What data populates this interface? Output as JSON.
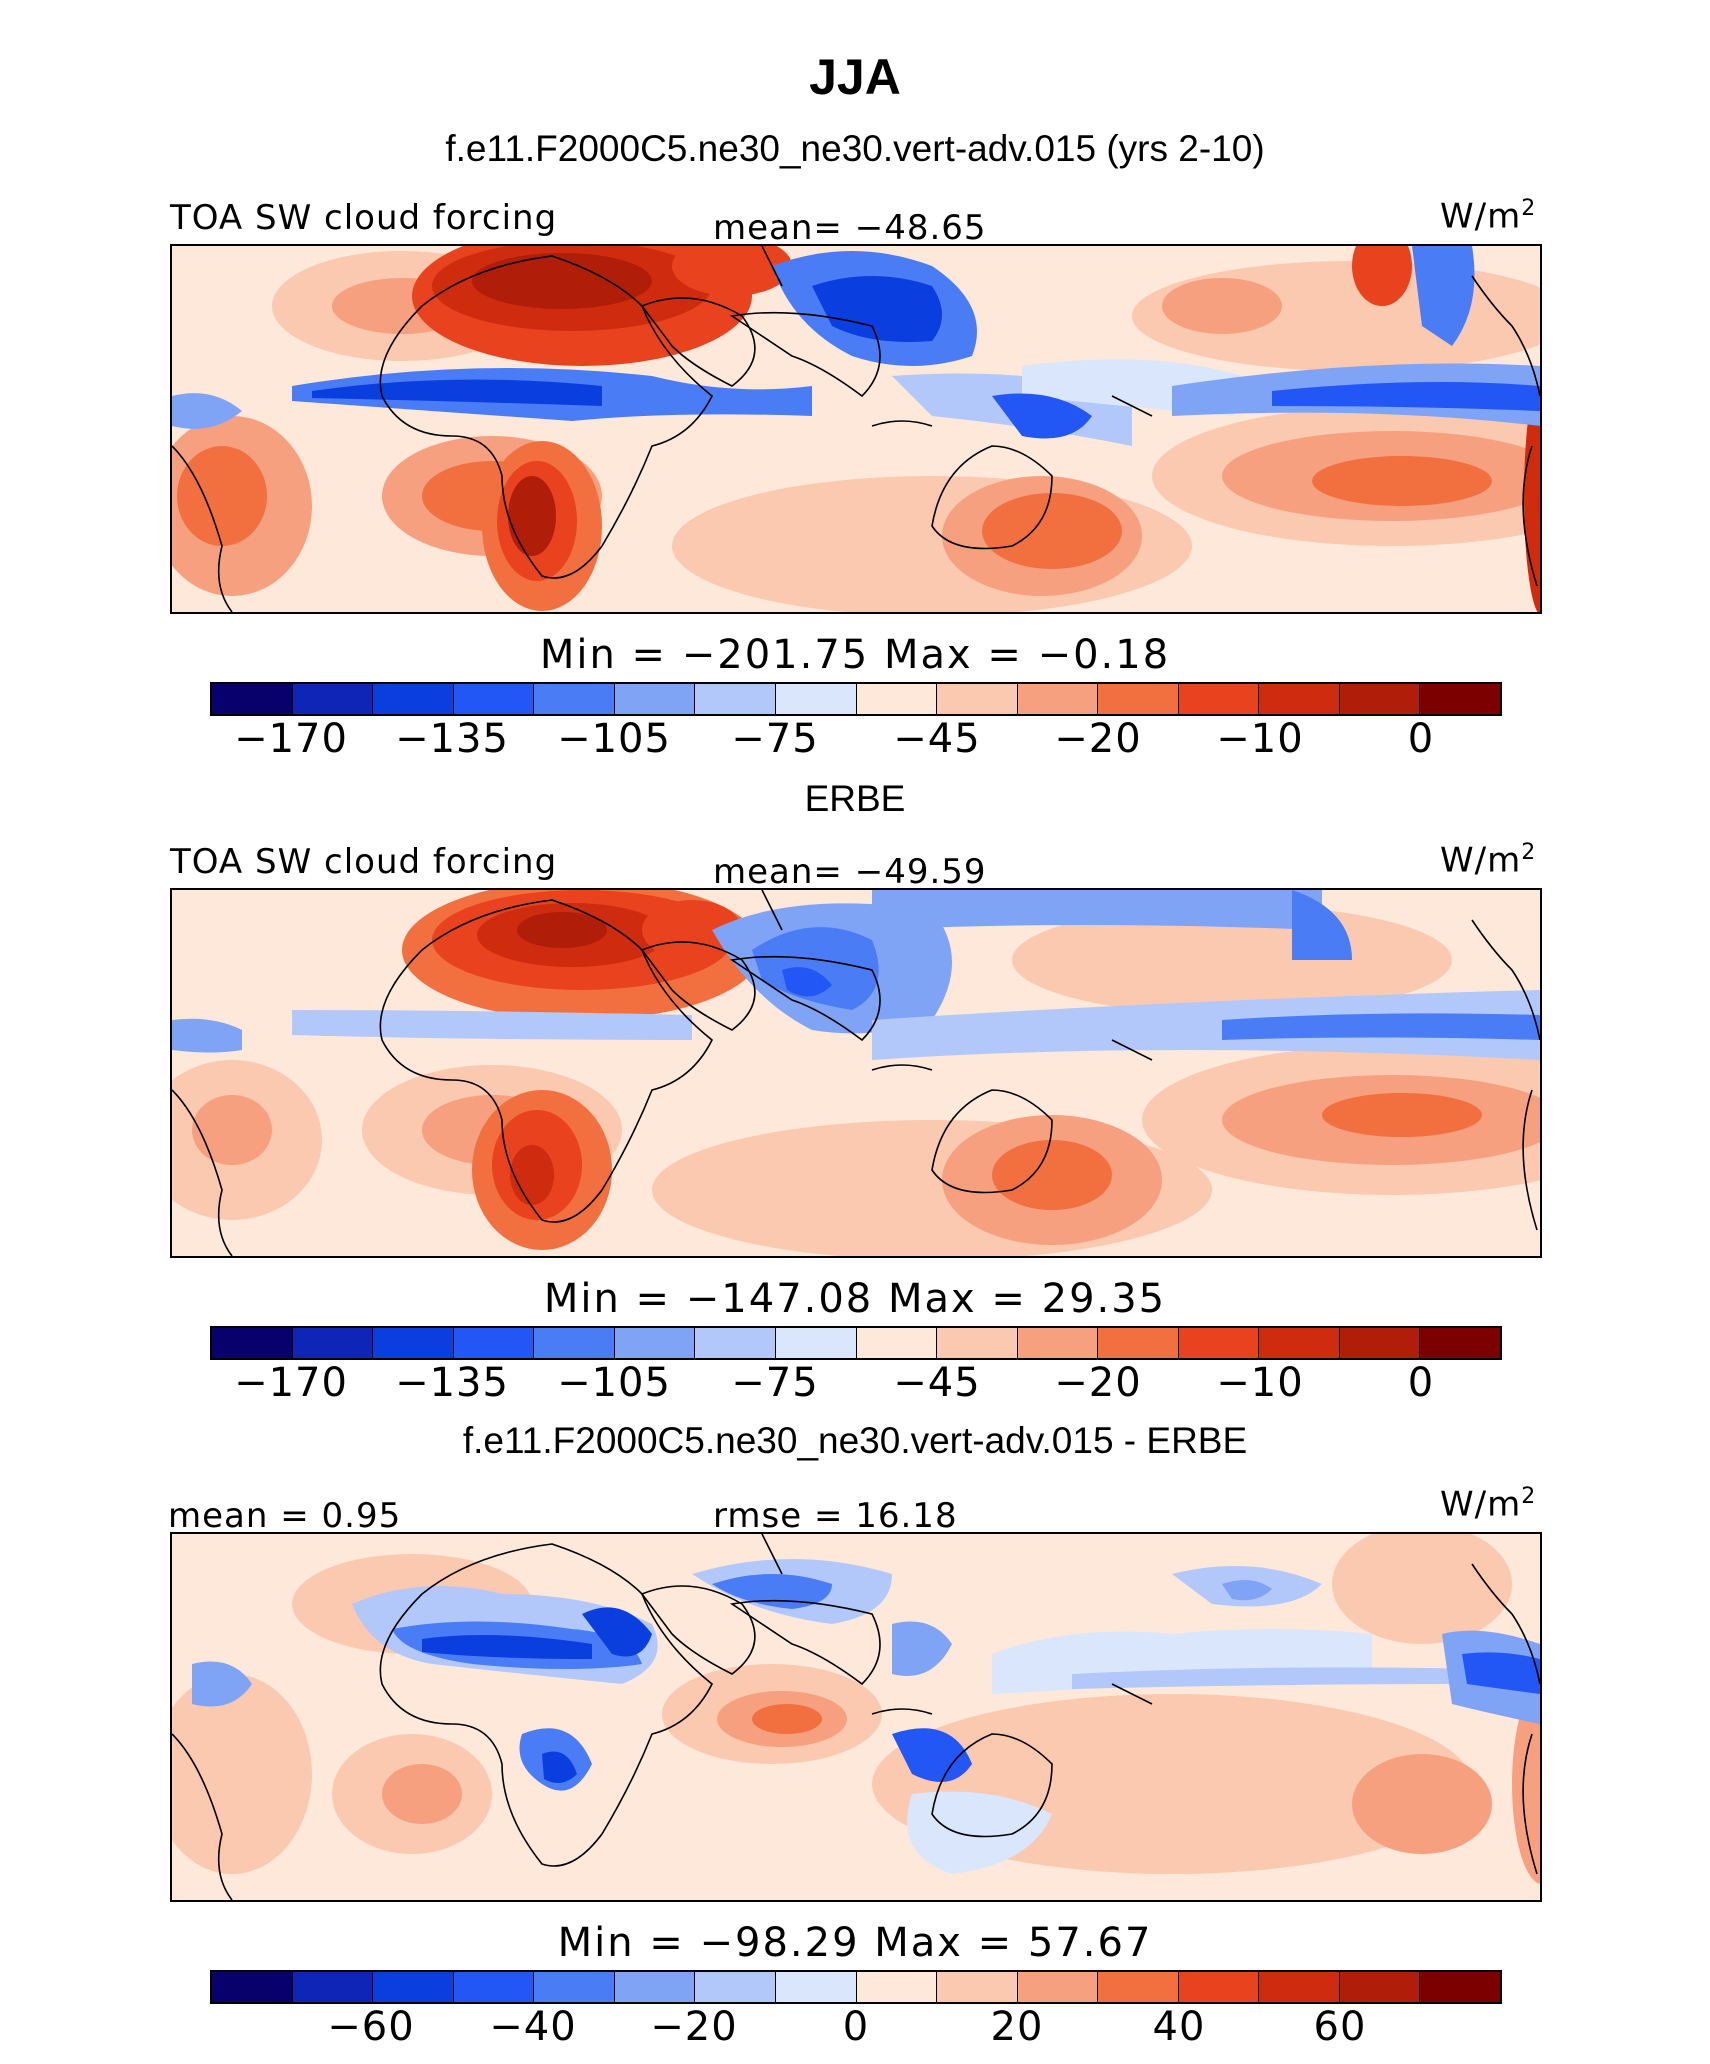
{
  "header": {
    "title": "JJA",
    "subtitle": "f.e11.F2000C5.ne30_ne30.vert-adv.015 (yrs 2-10)"
  },
  "colors": {
    "palette": [
      "#08006b",
      "#0f25b8",
      "#0a3ede",
      "#2256f5",
      "#4a7cf5",
      "#7fa3f5",
      "#b3c8fa",
      "#d9e6fc",
      "#fde8da",
      "#fbc8b0",
      "#f6a07f",
      "#f2703f",
      "#e8421e",
      "#cf2b0e",
      "#b01d08",
      "#7c0000"
    ]
  },
  "chart_data": [
    {
      "type": "heatmap",
      "panel_id": "model",
      "title": "",
      "left_label": "TOA SW cloud forcing",
      "center_label": "mean= −48.65",
      "units": "W/m",
      "units_exp": "2",
      "field_mean": -48.65,
      "min_max_text": "Min  =  −201.75  Max  =   −0.18",
      "min": -201.75,
      "max": -0.18,
      "colorbar_ticks": [
        "−170",
        "−135",
        "−105",
        "−75",
        "−45",
        "−20",
        "−10",
        "0"
      ],
      "colorbar_tick_values": [
        -170,
        -135,
        -105,
        -75,
        -45,
        -20,
        -10,
        0
      ]
    },
    {
      "type": "heatmap",
      "panel_id": "obs",
      "title": "ERBE",
      "left_label": "TOA SW cloud forcing",
      "center_label": "mean= −49.59",
      "units": "W/m",
      "units_exp": "2",
      "field_mean": -49.59,
      "min_max_text": "Min  =  −147.08  Max  =   29.35",
      "min": -147.08,
      "max": 29.35,
      "colorbar_ticks": [
        "−170",
        "−135",
        "−105",
        "−75",
        "−45",
        "−20",
        "−10",
        "0"
      ],
      "colorbar_tick_values": [
        -170,
        -135,
        -105,
        -75,
        -45,
        -20,
        -10,
        0
      ]
    },
    {
      "type": "heatmap",
      "panel_id": "diff",
      "title": "f.e11.F2000C5.ne30_ne30.vert-adv.015 - ERBE",
      "left_label": "mean =   0.95",
      "center_label": "rmse =   16.18",
      "units": "W/m",
      "units_exp": "2",
      "field_mean": 0.95,
      "rmse": 16.18,
      "min_max_text": "Min  =  −98.29  Max  =   57.67",
      "min": -98.29,
      "max": 57.67,
      "colorbar_ticks": [
        "−60",
        "−40",
        "−20",
        "0",
        "20",
        "40",
        "60"
      ],
      "colorbar_tick_values": [
        -60,
        -40,
        -20,
        0,
        20,
        40,
        60
      ]
    }
  ]
}
